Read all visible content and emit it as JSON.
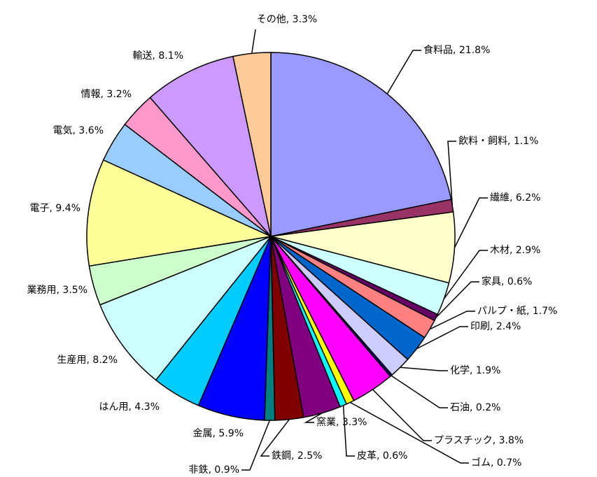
{
  "chart_data": {
    "type": "pie",
    "values": [
      21.8,
      1.1,
      6.2,
      2.9,
      0.6,
      1.7,
      2.4,
      1.9,
      0.2,
      3.8,
      0.7,
      0.6,
      3.3,
      2.5,
      0.9,
      5.9,
      4.3,
      8.2,
      3.5,
      9.4,
      3.6,
      3.2,
      8.1,
      3.3
    ],
    "value_labels": [
      "食料品, 21.8%",
      "飲料・飼料, 1.1%",
      "繊維, 6.2%",
      "木材, 2.9%",
      "家具, 0.6%",
      "パルプ・紙, 1.7%",
      "印刷, 2.4%",
      "化学, 1.9%",
      "石油, 0.2%",
      "プラスチック, 3.8%",
      "ゴム, 0.7%",
      "皮革, 0.6%",
      "窯業, 3.3%",
      "鉄鋼, 2.5%",
      "非鉄, 0.9%",
      "金属, 5.9%",
      "はん用, 4.3%",
      "生産用, 8.2%",
      "業務用, 3.5%",
      "電子, 9.4%",
      "電気, 3.6%",
      "情報, 3.2%",
      "輸送, 8.1%",
      "その他, 3.3%"
    ],
    "colors": [
      "#9999ff",
      "#993366",
      "#ffffcc",
      "#ccffff",
      "#660066",
      "#ff8080",
      "#0066cc",
      "#ccccff",
      "#000080",
      "#ff00ff",
      "#ffff00",
      "#00ffff",
      "#800080",
      "#800000",
      "#008080",
      "#0000ff",
      "#00ccff",
      "#ccffff",
      "#ccffcc",
      "#ffff99",
      "#99ccff",
      "#ff99cc",
      "#cc99ff",
      "#ffcc99"
    ]
  }
}
